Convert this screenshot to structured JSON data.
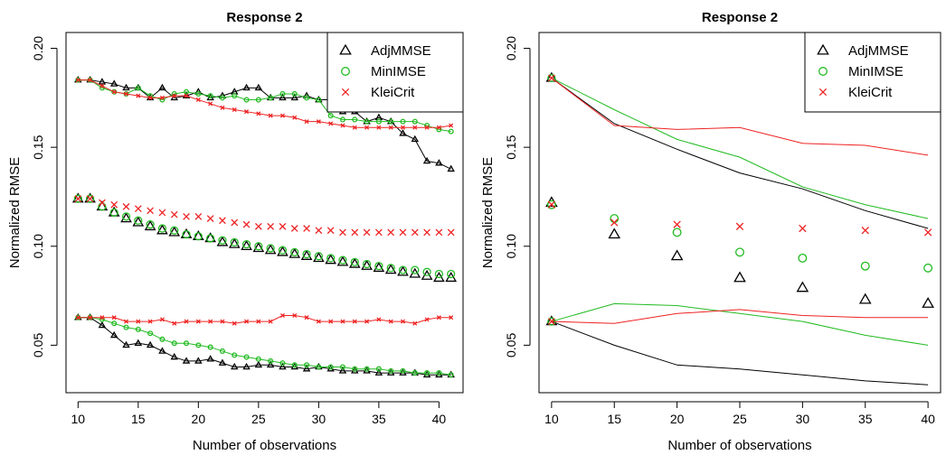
{
  "chart_data": [
    {
      "type": "line",
      "title": "Response 2",
      "xlabel": "Number of observations",
      "ylabel": "Normalized RMSE",
      "xlim": [
        9,
        42
      ],
      "ylim": [
        0.026,
        0.208
      ],
      "xticks": [
        "10",
        "15",
        "20",
        "25",
        "30",
        "35",
        "40"
      ],
      "yticks": [
        "0.05",
        "0.10",
        "0.15",
        "0.20"
      ],
      "legend": {
        "position": "top-right",
        "entries": [
          "AdjMMSE",
          "MinIMSE",
          "KleiCrit"
        ]
      },
      "colors": {
        "AdjMMSE": "#000000",
        "MinIMSE": "#22bb22",
        "KleiCrit": "#ee2222"
      },
      "grid": false,
      "x": [
        10,
        11,
        12,
        13,
        14,
        15,
        16,
        17,
        18,
        19,
        20,
        21,
        22,
        23,
        24,
        25,
        26,
        27,
        28,
        29,
        30,
        31,
        32,
        33,
        34,
        35,
        36,
        37,
        38,
        39,
        40,
        41
      ],
      "series": [
        {
          "name": "AdjMMSE",
          "group": "upper",
          "style": "line-points",
          "values": [
            0.184,
            0.184,
            0.183,
            0.182,
            0.18,
            0.18,
            0.175,
            0.18,
            0.175,
            0.176,
            0.178,
            0.175,
            0.176,
            0.178,
            0.18,
            0.18,
            0.175,
            0.175,
            0.175,
            0.176,
            0.174,
            0.174,
            0.168,
            0.168,
            0.163,
            0.165,
            0.163,
            0.157,
            0.154,
            0.143,
            0.142,
            0.139
          ]
        },
        {
          "name": "MinIMSE",
          "group": "upper",
          "style": "line-points",
          "values": [
            0.184,
            0.184,
            0.18,
            0.178,
            0.177,
            0.18,
            0.176,
            0.174,
            0.177,
            0.178,
            0.177,
            0.176,
            0.175,
            0.176,
            0.174,
            0.174,
            0.175,
            0.177,
            0.177,
            0.175,
            0.174,
            0.166,
            0.164,
            0.164,
            0.163,
            0.163,
            0.163,
            0.163,
            0.163,
            0.161,
            0.159,
            0.158
          ]
        },
        {
          "name": "KleiCrit",
          "group": "upper",
          "style": "line-points",
          "values": [
            0.184,
            0.184,
            0.181,
            0.178,
            0.177,
            0.176,
            0.175,
            0.175,
            0.176,
            0.176,
            0.174,
            0.172,
            0.17,
            0.169,
            0.168,
            0.167,
            0.166,
            0.166,
            0.165,
            0.163,
            0.163,
            0.162,
            0.161,
            0.16,
            0.16,
            0.16,
            0.16,
            0.16,
            0.16,
            0.16,
            0.16,
            0.161
          ]
        },
        {
          "name": "AdjMMSE",
          "group": "middle",
          "style": "points",
          "values": [
            0.124,
            0.124,
            0.12,
            0.117,
            0.114,
            0.112,
            0.11,
            0.108,
            0.107,
            0.106,
            0.105,
            0.104,
            0.102,
            0.101,
            0.1,
            0.099,
            0.098,
            0.097,
            0.096,
            0.095,
            0.094,
            0.093,
            0.092,
            0.091,
            0.09,
            0.089,
            0.088,
            0.087,
            0.086,
            0.085,
            0.084,
            0.084
          ]
        },
        {
          "name": "MinIMSE",
          "group": "middle",
          "style": "points",
          "values": [
            0.124,
            0.124,
            0.12,
            0.117,
            0.115,
            0.113,
            0.111,
            0.109,
            0.108,
            0.106,
            0.105,
            0.104,
            0.103,
            0.102,
            0.101,
            0.1,
            0.099,
            0.098,
            0.097,
            0.096,
            0.095,
            0.094,
            0.093,
            0.092,
            0.091,
            0.09,
            0.089,
            0.088,
            0.088,
            0.087,
            0.086,
            0.086
          ]
        },
        {
          "name": "KleiCrit",
          "group": "middle",
          "style": "points",
          "values": [
            0.124,
            0.124,
            0.122,
            0.121,
            0.12,
            0.119,
            0.118,
            0.117,
            0.116,
            0.115,
            0.115,
            0.114,
            0.113,
            0.112,
            0.111,
            0.11,
            0.11,
            0.11,
            0.109,
            0.109,
            0.108,
            0.108,
            0.107,
            0.107,
            0.107,
            0.107,
            0.107,
            0.107,
            0.107,
            0.107,
            0.107,
            0.107
          ]
        },
        {
          "name": "AdjMMSE",
          "group": "lower",
          "style": "line-points",
          "values": [
            0.064,
            0.064,
            0.06,
            0.055,
            0.05,
            0.051,
            0.05,
            0.047,
            0.044,
            0.042,
            0.042,
            0.043,
            0.041,
            0.039,
            0.039,
            0.04,
            0.04,
            0.039,
            0.039,
            0.038,
            0.039,
            0.038,
            0.037,
            0.037,
            0.037,
            0.036,
            0.036,
            0.036,
            0.036,
            0.035,
            0.035,
            0.035
          ]
        },
        {
          "name": "MinIMSE",
          "group": "lower",
          "style": "line-points",
          "values": [
            0.064,
            0.064,
            0.063,
            0.061,
            0.059,
            0.058,
            0.056,
            0.053,
            0.051,
            0.051,
            0.05,
            0.049,
            0.047,
            0.045,
            0.044,
            0.043,
            0.042,
            0.041,
            0.04,
            0.04,
            0.039,
            0.039,
            0.039,
            0.038,
            0.038,
            0.038,
            0.037,
            0.037,
            0.036,
            0.036,
            0.036,
            0.035
          ]
        },
        {
          "name": "KleiCrit",
          "group": "lower",
          "style": "line-points",
          "values": [
            0.064,
            0.064,
            0.064,
            0.064,
            0.062,
            0.062,
            0.062,
            0.063,
            0.061,
            0.062,
            0.062,
            0.062,
            0.062,
            0.061,
            0.062,
            0.062,
            0.062,
            0.065,
            0.065,
            0.064,
            0.062,
            0.062,
            0.062,
            0.062,
            0.062,
            0.063,
            0.062,
            0.062,
            0.061,
            0.063,
            0.064,
            0.064
          ]
        }
      ]
    },
    {
      "type": "line",
      "title": "Response 2",
      "xlabel": "Number of observations",
      "ylabel": "Normalized RMSE",
      "xlim": [
        9,
        41
      ],
      "ylim": [
        0.026,
        0.208
      ],
      "xticks": [
        "10",
        "15",
        "20",
        "25",
        "30",
        "35",
        "40"
      ],
      "yticks": [
        "0.05",
        "0.10",
        "0.15",
        "0.20"
      ],
      "legend": {
        "position": "top-right",
        "entries": [
          "AdjMMSE",
          "MinIMSE",
          "KleiCrit"
        ]
      },
      "colors": {
        "AdjMMSE": "#000000",
        "MinIMSE": "#22bb22",
        "KleiCrit": "#ee2222"
      },
      "grid": false,
      "x": [
        10,
        15,
        20,
        25,
        30,
        35,
        40
      ],
      "series": [
        {
          "name": "AdjMMSE",
          "group": "upper",
          "style": "line",
          "values": [
            0.185,
            0.162,
            0.149,
            0.137,
            0.129,
            0.118,
            0.109
          ]
        },
        {
          "name": "MinIMSE",
          "group": "upper",
          "style": "line",
          "values": [
            0.185,
            0.169,
            0.154,
            0.145,
            0.13,
            0.121,
            0.114
          ]
        },
        {
          "name": "KleiCrit",
          "group": "upper",
          "style": "line",
          "values": [
            0.185,
            0.161,
            0.159,
            0.16,
            0.152,
            0.151,
            0.146
          ]
        },
        {
          "name": "AdjMMSE",
          "group": "middle",
          "style": "points",
          "values": [
            0.122,
            0.106,
            0.095,
            0.084,
            0.079,
            0.073,
            0.071
          ]
        },
        {
          "name": "MinIMSE",
          "group": "middle",
          "style": "points",
          "values": [
            0.121,
            0.114,
            0.107,
            0.097,
            0.094,
            0.09,
            0.089
          ]
        },
        {
          "name": "KleiCrit",
          "group": "middle",
          "style": "points",
          "values": [
            0.121,
            0.112,
            0.111,
            0.11,
            0.109,
            0.108,
            0.107
          ]
        },
        {
          "name": "AdjMMSE",
          "group": "lower",
          "style": "line",
          "values": [
            0.062,
            0.05,
            0.04,
            0.038,
            0.035,
            0.032,
            0.03
          ]
        },
        {
          "name": "MinIMSE",
          "group": "lower",
          "style": "line",
          "values": [
            0.062,
            0.071,
            0.07,
            0.066,
            0.062,
            0.055,
            0.05
          ]
        },
        {
          "name": "KleiCrit",
          "group": "lower",
          "style": "line",
          "values": [
            0.062,
            0.061,
            0.066,
            0.068,
            0.065,
            0.064,
            0.064
          ]
        }
      ]
    }
  ]
}
